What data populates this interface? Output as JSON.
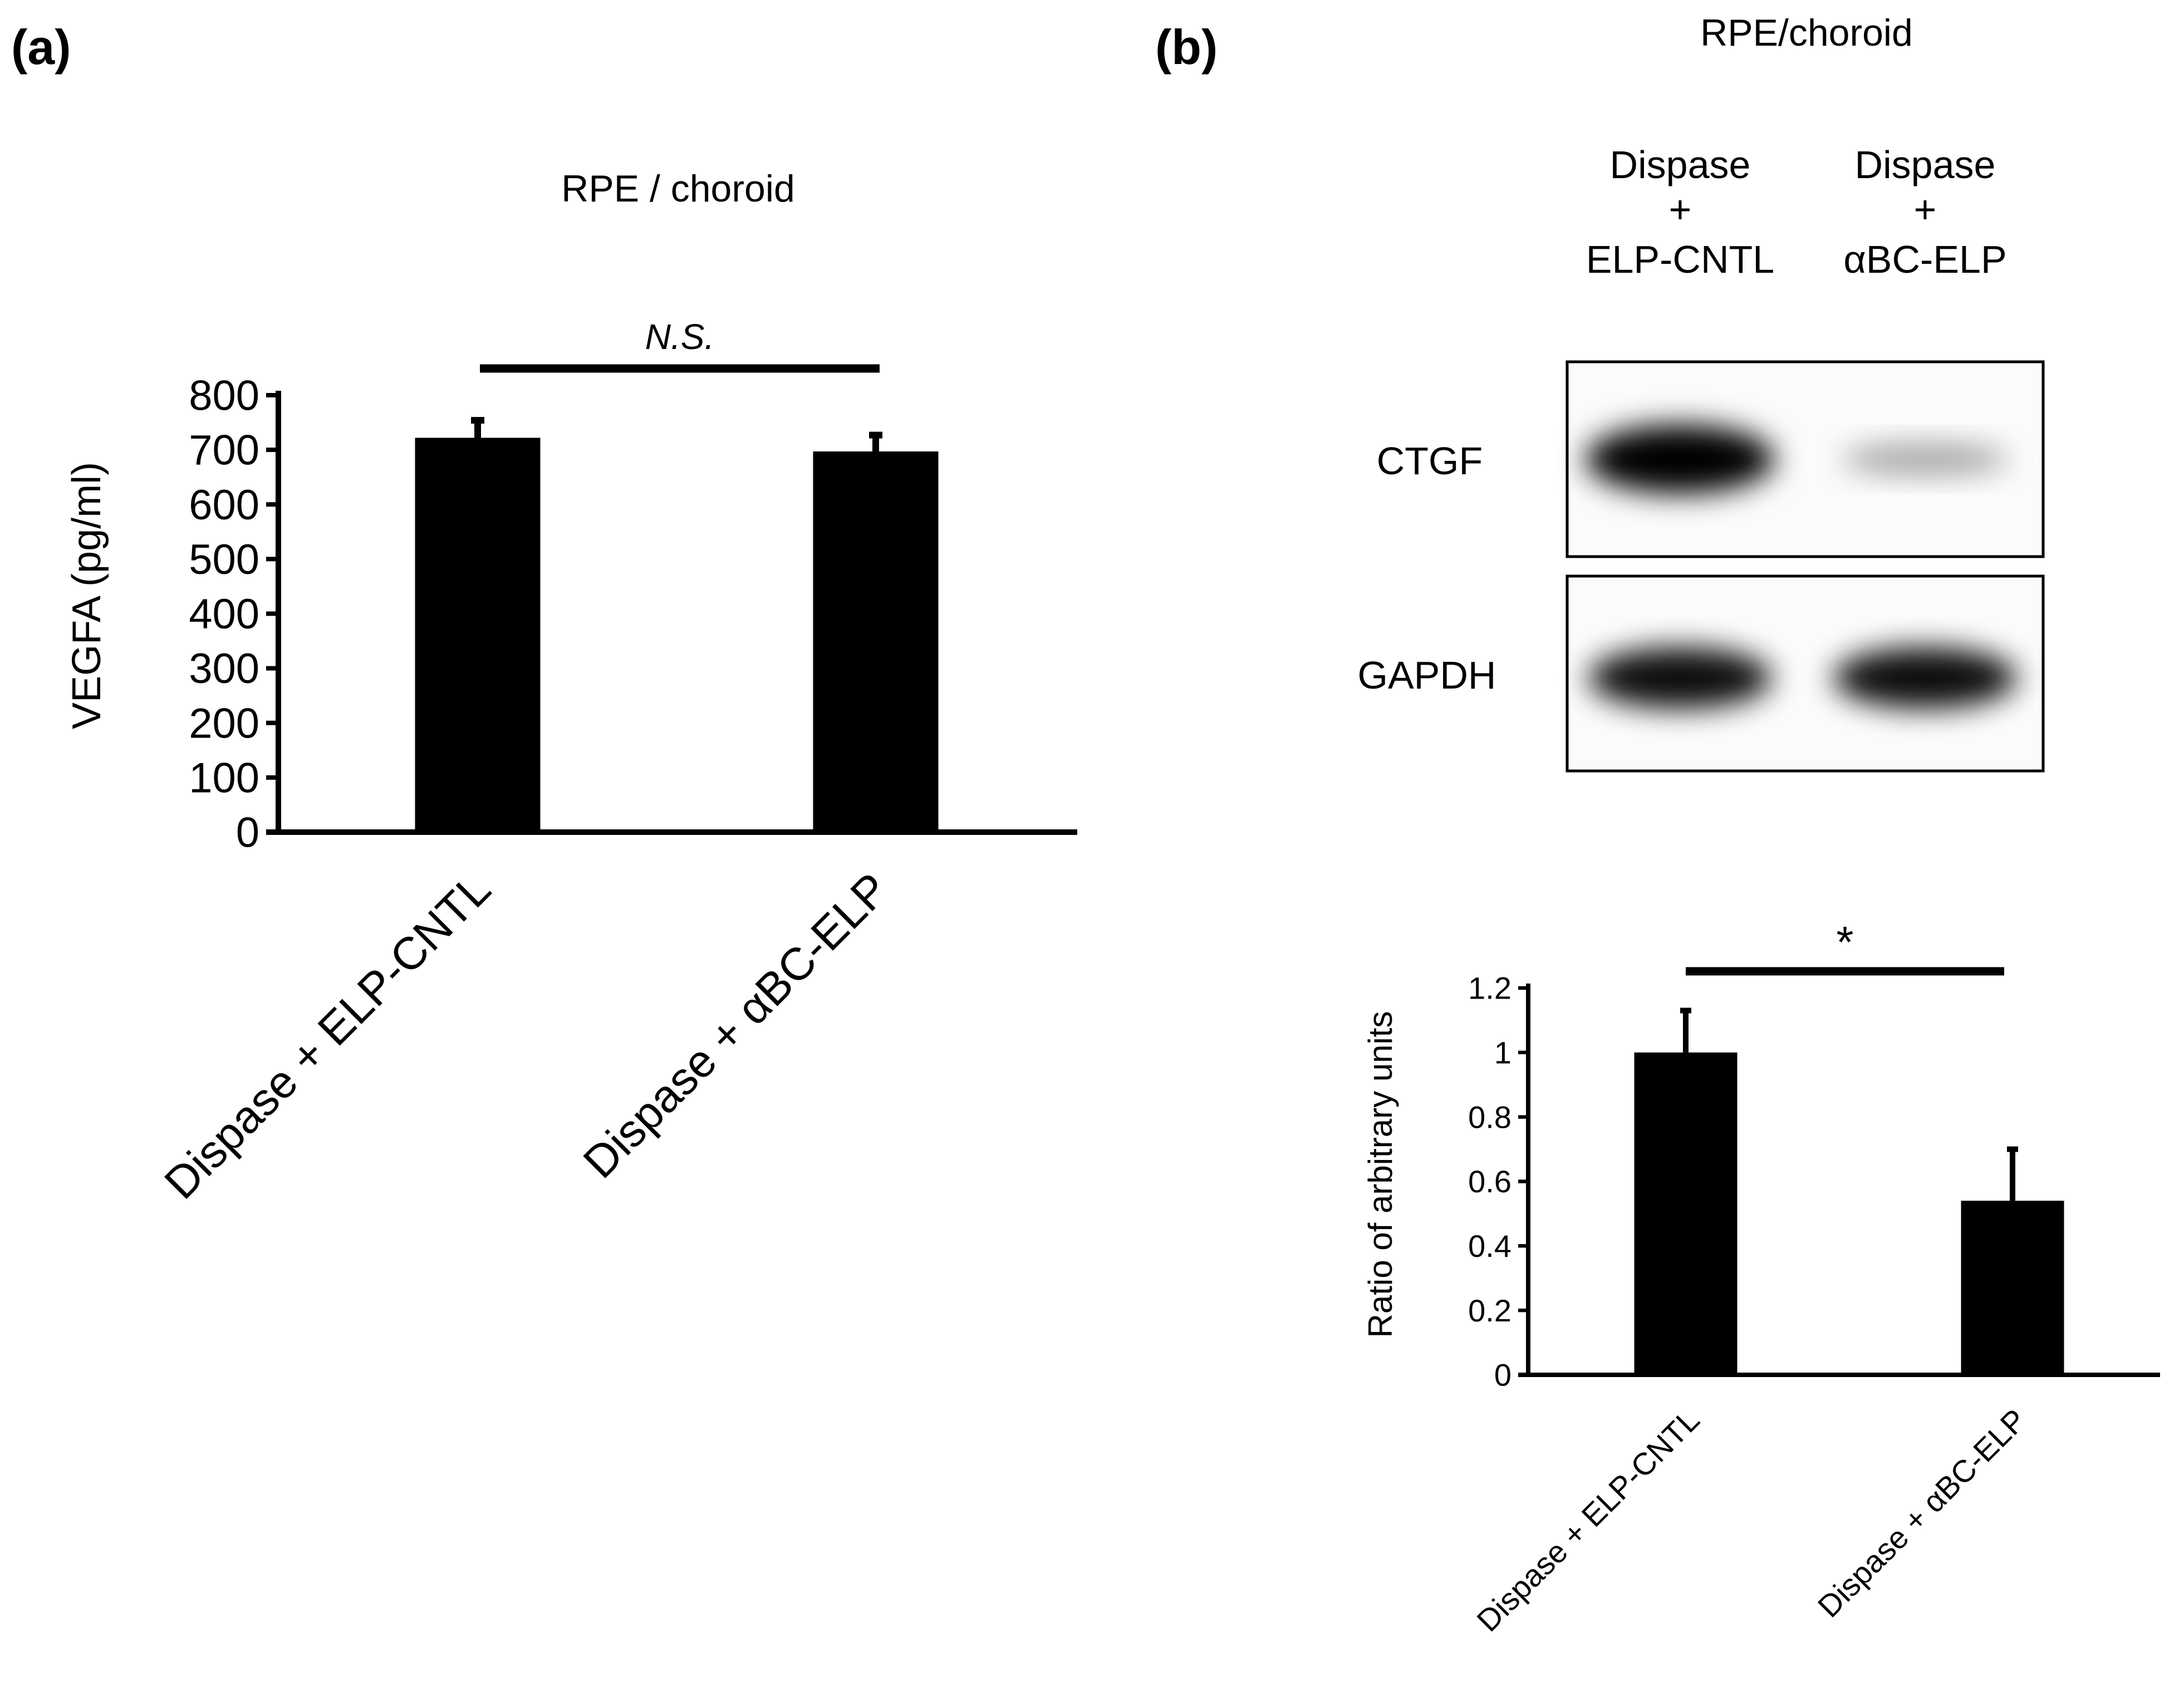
{
  "panel_a": {
    "label": "(a)"
  },
  "panel_b": {
    "label": "(b)",
    "title": "RPE/choroid",
    "blot": {
      "lanes": [
        {
          "line1": "Dispase",
          "line2": "+",
          "line3": "ELP-CNTL"
        },
        {
          "line1": "Dispase",
          "line2": "+",
          "line3": "αBC-ELP"
        }
      ],
      "rows": [
        {
          "label": "CTGF",
          "band_intensity": [
            1.0,
            0.35
          ]
        },
        {
          "label": "GAPDH",
          "band_intensity": [
            0.95,
            0.95
          ]
        }
      ]
    }
  },
  "colors": {
    "bar": "#000000",
    "axis": "#000000",
    "background": "#ffffff"
  },
  "chart_data": [
    {
      "type": "bar",
      "panel": "a",
      "title": "RPE / choroid",
      "categories": [
        "Dispase + ELP-CNTL",
        "Dispase + αBC-ELP"
      ],
      "values": [
        722,
        697
      ],
      "errors": [
        32,
        30
      ],
      "xlabel": "",
      "ylabel": "VEGFA (pg/ml)",
      "ylim": [
        0,
        800
      ],
      "yticks": [
        "0",
        "100",
        "200",
        "300",
        "400",
        "500",
        "600",
        "700",
        "800"
      ],
      "grid": false,
      "significance": {
        "label": "N.S."
      }
    },
    {
      "type": "bar",
      "panel": "b",
      "title": "",
      "categories": [
        "Dispase + ELP-CNTL",
        "Dispase + αBC-ELP"
      ],
      "values": [
        1.0,
        0.54
      ],
      "errors": [
        0.13,
        0.16
      ],
      "xlabel": "",
      "ylabel": "Ratio of arbitrary units",
      "ylim": [
        0,
        1.2
      ],
      "yticks": [
        "0",
        "0.2",
        "0.4",
        "0.6",
        "0.8",
        "1",
        "1.2"
      ],
      "grid": false,
      "significance": {
        "label": "*"
      }
    }
  ]
}
